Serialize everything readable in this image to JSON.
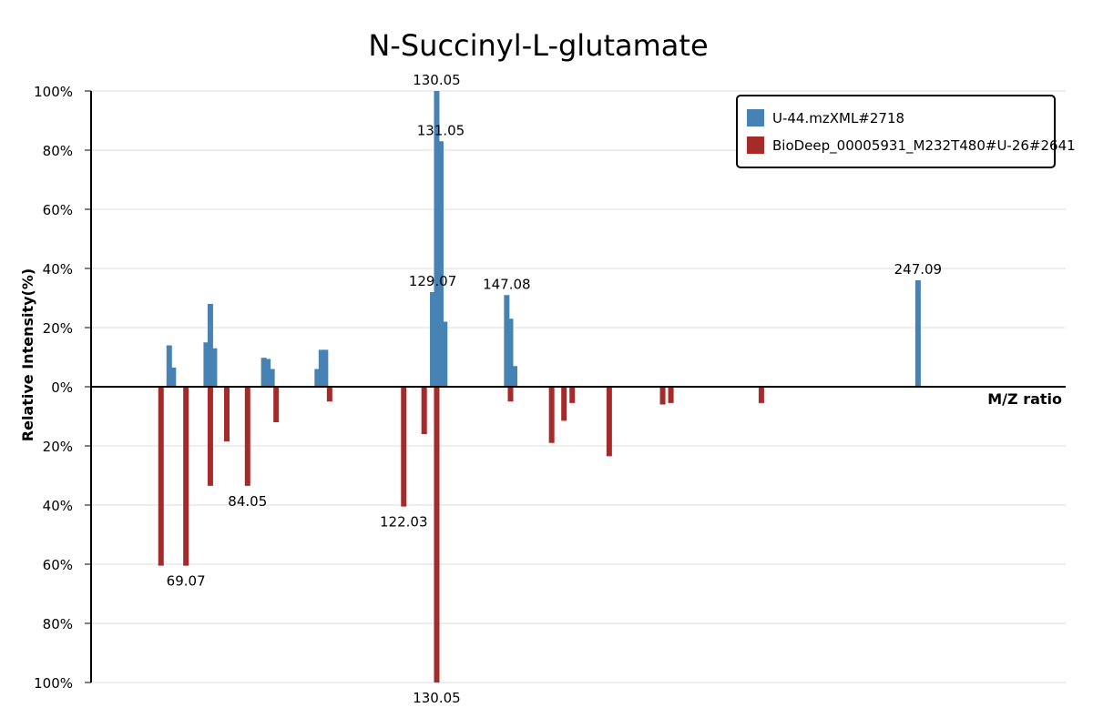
{
  "chart_data": {
    "type": "bar",
    "title": "N-Succinyl-L-glutamate",
    "xlabel": "M/Z ratio",
    "ylabel": "Relative Intensity(%)",
    "xlim": [
      46.0,
      283.0
    ],
    "ylim": [
      -100,
      100
    ],
    "yticks": [
      {
        "value": 100,
        "label": "100%"
      },
      {
        "value": 80,
        "label": "80%"
      },
      {
        "value": 60,
        "label": "60%"
      },
      {
        "value": 40,
        "label": "40%"
      },
      {
        "value": 20,
        "label": "20%"
      },
      {
        "value": 0,
        "label": "0%"
      },
      {
        "value": -20,
        "label": "20%"
      },
      {
        "value": -40,
        "label": "40%"
      },
      {
        "value": -60,
        "label": "60%"
      },
      {
        "value": -80,
        "label": "80%"
      },
      {
        "value": -100,
        "label": "100%"
      }
    ],
    "grid": true,
    "legend_position": "top-right",
    "series": [
      {
        "name": "U-44.mzXML#2718",
        "color": "#4682b4",
        "direction": "up",
        "points": [
          {
            "mz": 65.0,
            "intensity": 14
          },
          {
            "mz": 66.0,
            "intensity": 6.5
          },
          {
            "mz": 74.0,
            "intensity": 15
          },
          {
            "mz": 75.0,
            "intensity": 28
          },
          {
            "mz": 76.0,
            "intensity": 13
          },
          {
            "mz": 88.0,
            "intensity": 9.8
          },
          {
            "mz": 89.0,
            "intensity": 9.4
          },
          {
            "mz": 90.0,
            "intensity": 6
          },
          {
            "mz": 101.0,
            "intensity": 6
          },
          {
            "mz": 102.0,
            "intensity": 12.5
          },
          {
            "mz": 103.0,
            "intensity": 12.5
          },
          {
            "mz": 129.07,
            "intensity": 32,
            "label": "129.07"
          },
          {
            "mz": 130.05,
            "intensity": 100,
            "label": "130.05"
          },
          {
            "mz": 131.05,
            "intensity": 83,
            "label": "131.05"
          },
          {
            "mz": 132.0,
            "intensity": 22
          },
          {
            "mz": 147.08,
            "intensity": 31,
            "label": "147.08"
          },
          {
            "mz": 148.0,
            "intensity": 23
          },
          {
            "mz": 149.0,
            "intensity": 7
          },
          {
            "mz": 247.09,
            "intensity": 36,
            "label": "247.09"
          }
        ]
      },
      {
        "name": "BioDeep_00005931_M232T480#U-26#2641",
        "color": "#a52a2a",
        "direction": "down",
        "points": [
          {
            "mz": 63.0,
            "intensity": 60.5
          },
          {
            "mz": 69.07,
            "intensity": 60.5,
            "label": "69.07"
          },
          {
            "mz": 75.0,
            "intensity": 33.5
          },
          {
            "mz": 84.05,
            "intensity": 33.5,
            "label": "84.05"
          },
          {
            "mz": 79.0,
            "intensity": 18.5
          },
          {
            "mz": 91.0,
            "intensity": 12
          },
          {
            "mz": 104.0,
            "intensity": 5
          },
          {
            "mz": 122.03,
            "intensity": 40.5,
            "label": "122.03"
          },
          {
            "mz": 127.0,
            "intensity": 16
          },
          {
            "mz": 130.05,
            "intensity": 100,
            "label": "130.05"
          },
          {
            "mz": 148.0,
            "intensity": 5
          },
          {
            "mz": 158.0,
            "intensity": 19
          },
          {
            "mz": 161.0,
            "intensity": 11.5
          },
          {
            "mz": 163.0,
            "intensity": 5.5
          },
          {
            "mz": 172.0,
            "intensity": 23.5
          },
          {
            "mz": 185.0,
            "intensity": 6
          },
          {
            "mz": 187.0,
            "intensity": 5.5
          },
          {
            "mz": 209.0,
            "intensity": 5.5
          }
        ]
      }
    ]
  }
}
